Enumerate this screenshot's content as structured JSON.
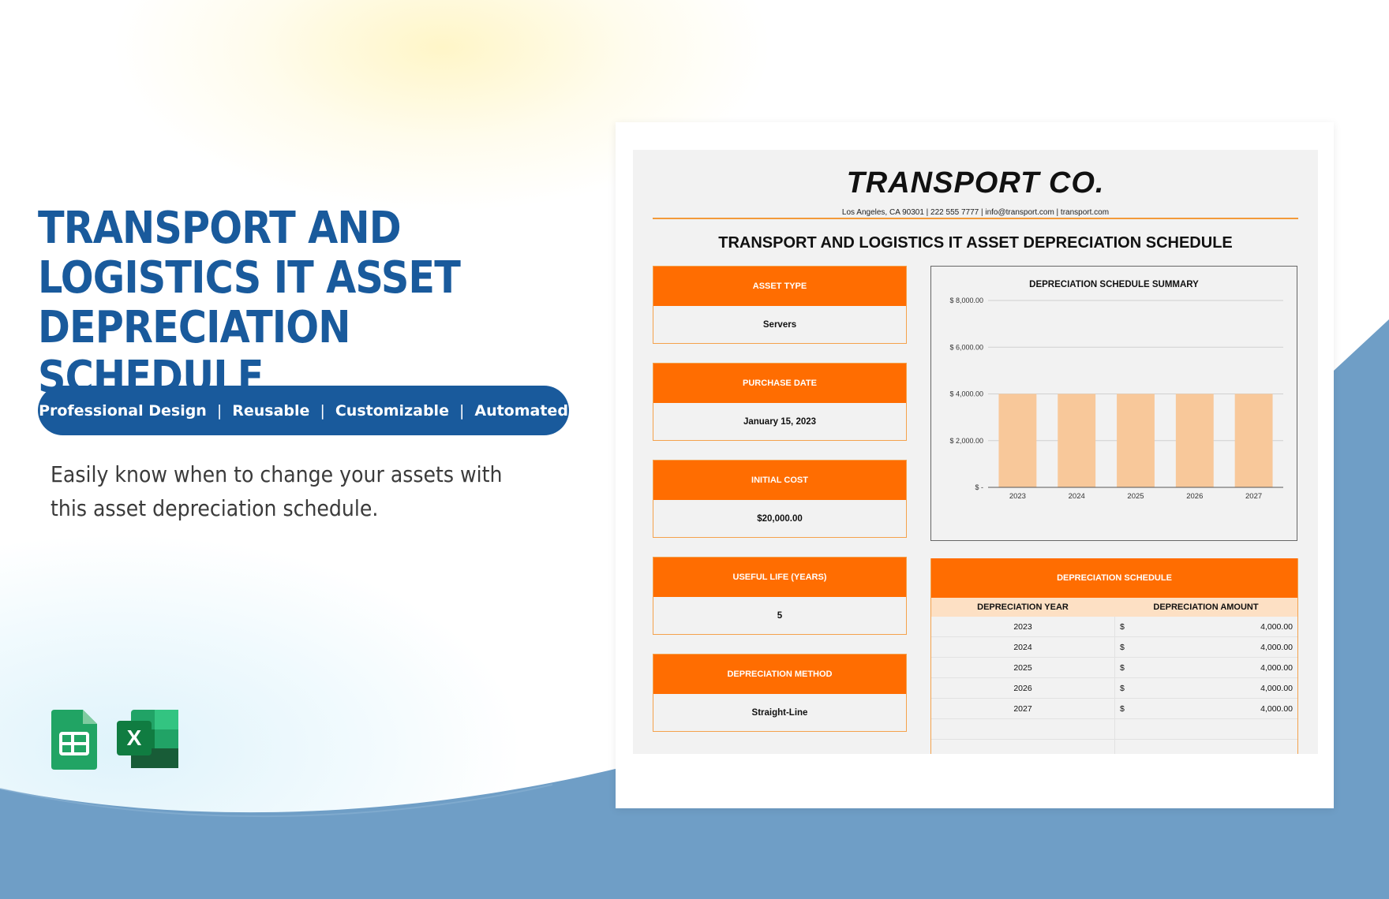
{
  "hero": {
    "title_line1": "TRANSPORT AND",
    "title_line2": "LOGISTICS IT ASSET",
    "title_line3": "DEPRECIATION SCHEDULE",
    "features": [
      "Professional Design",
      "Reusable",
      "Customizable",
      "Automated"
    ],
    "separator": "|",
    "description": "Easily know when to change your assets with this asset depreciation schedule."
  },
  "apps": {
    "excel_letter": "X"
  },
  "document": {
    "company": "TRANSPORT CO.",
    "contact": "Los Angeles, CA 90301 | 222 555 7777 | info@transport.com | transport.com",
    "title": "TRANSPORT AND LOGISTICS IT ASSET DEPRECIATION SCHEDULE",
    "fields": [
      {
        "label": "ASSET TYPE",
        "value": "Servers"
      },
      {
        "label": "PURCHASE DATE",
        "value": "January 15, 2023"
      },
      {
        "label": "INITIAL COST",
        "value": "$20,000.00"
      },
      {
        "label": "USEFUL LIFE (YEARS)",
        "value": "5"
      },
      {
        "label": "DEPRECIATION METHOD",
        "value": "Straight-Line"
      }
    ],
    "schedule": {
      "title": "DEPRECIATION SCHEDULE",
      "col_year": "DEPRECIATION YEAR",
      "col_amount": "DEPRECIATION AMOUNT",
      "rows": [
        {
          "year": "2023",
          "currency": "$",
          "amount": "4,000.00"
        },
        {
          "year": "2024",
          "currency": "$",
          "amount": "4,000.00"
        },
        {
          "year": "2025",
          "currency": "$",
          "amount": "4,000.00"
        },
        {
          "year": "2026",
          "currency": "$",
          "amount": "4,000.00"
        },
        {
          "year": "2027",
          "currency": "$",
          "amount": "4,000.00"
        }
      ]
    }
  },
  "colors": {
    "brand_blue": "#195a9c",
    "accent_orange": "#ff6d01",
    "bar_fill": "#f8c89a",
    "wave_blue": "#6f9ec6"
  },
  "chart_data": {
    "type": "bar",
    "title": "DEPRECIATION SCHEDULE SUMMARY",
    "categories": [
      "2023",
      "2024",
      "2025",
      "2026",
      "2027"
    ],
    "values": [
      4000,
      4000,
      4000,
      4000,
      4000
    ],
    "ylim": [
      0,
      8000
    ],
    "yticks": [
      0,
      2000,
      4000,
      6000,
      8000
    ],
    "ytick_labels": [
      "$ -",
      "$ 2,000.00",
      "$ 4,000.00",
      "$ 6,000.00",
      "$ 8,000.00"
    ],
    "grid": true,
    "legend": false
  }
}
